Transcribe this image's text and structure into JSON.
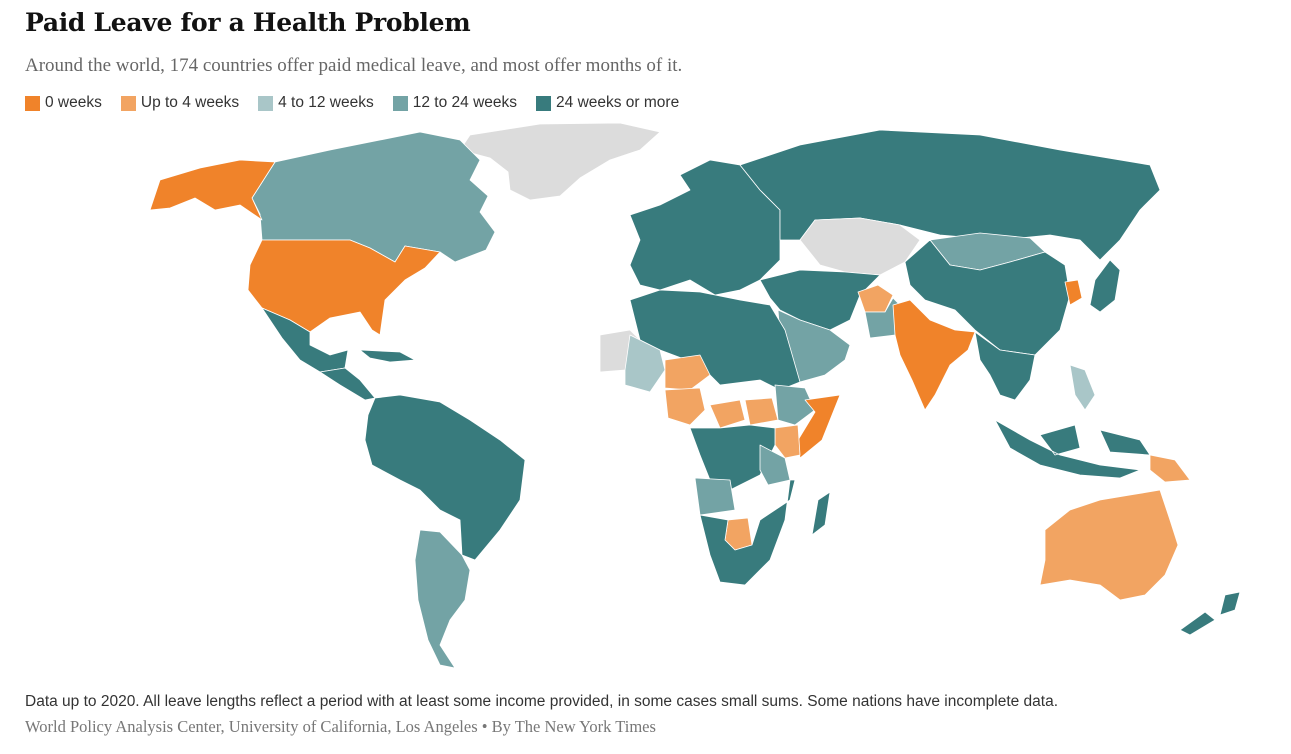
{
  "header": {
    "title": "Paid Leave for a Health Problem",
    "subtitle": "Around the world, 174 countries offer paid medical leave, and most offer months of it."
  },
  "legend": [
    {
      "label": "0 weeks",
      "color": "#f0832a"
    },
    {
      "label": "Up to 4 weeks",
      "color": "#f2a462"
    },
    {
      "label": "4 to 12 weeks",
      "color": "#a9c6c8"
    },
    {
      "label": "12 to 24 weeks",
      "color": "#73a3a5"
    },
    {
      "label": "24 weeks or more",
      "color": "#387b7d"
    }
  ],
  "no_data_color": "#dcdcdc",
  "regions": [
    {
      "name": "Alaska",
      "category": "0 weeks"
    },
    {
      "name": "Canada",
      "category": "12 to 24 weeks"
    },
    {
      "name": "United States",
      "category": "0 weeks"
    },
    {
      "name": "Greenland",
      "category": "no data"
    },
    {
      "name": "Mexico",
      "category": "24 weeks or more"
    },
    {
      "name": "Central America",
      "category": "24 weeks or more"
    },
    {
      "name": "South America",
      "category": "24 weeks or more"
    },
    {
      "name": "Argentina",
      "category": "12 to 24 weeks"
    },
    {
      "name": "Europe",
      "category": "24 weeks or more"
    },
    {
      "name": "Russia",
      "category": "24 weeks or more"
    },
    {
      "name": "Kazakhstan",
      "category": "no data"
    },
    {
      "name": "Mongolia",
      "category": "12 to 24 weeks"
    },
    {
      "name": "China",
      "category": "24 weeks or more"
    },
    {
      "name": "Middle East",
      "category": "24 weeks or more"
    },
    {
      "name": "Saudi Arabia",
      "category": "12 to 24 weeks"
    },
    {
      "name": "Afghanistan",
      "category": "Up to 4 weeks"
    },
    {
      "name": "Pakistan",
      "category": "12 to 24 weeks"
    },
    {
      "name": "India",
      "category": "0 weeks"
    },
    {
      "name": "South Korea",
      "category": "0 weeks"
    },
    {
      "name": "Japan",
      "category": "24 weeks or more"
    },
    {
      "name": "Southeast Asia",
      "category": "24 weeks or more"
    },
    {
      "name": "Philippines",
      "category": "4 to 12 weeks"
    },
    {
      "name": "Indonesia",
      "category": "24 weeks or more"
    },
    {
      "name": "Papua New Guinea",
      "category": "Up to 4 weeks"
    },
    {
      "name": "Australia",
      "category": "Up to 4 weeks"
    },
    {
      "name": "New Zealand",
      "category": "24 weeks or more"
    },
    {
      "name": "North Africa",
      "category": "24 weeks or more"
    },
    {
      "name": "Niger",
      "category": "Up to 4 weeks"
    },
    {
      "name": "Nigeria",
      "category": "Up to 4 weeks"
    },
    {
      "name": "Mali",
      "category": "4 to 12 weeks"
    },
    {
      "name": "Mauritania",
      "category": "no data"
    },
    {
      "name": "Central African Republic",
      "category": "Up to 4 weeks"
    },
    {
      "name": "South Sudan",
      "category": "Up to 4 weeks"
    },
    {
      "name": "Ethiopia",
      "category": "12 to 24 weeks"
    },
    {
      "name": "Somalia",
      "category": "0 weeks"
    },
    {
      "name": "Kenya",
      "category": "Up to 4 weeks"
    },
    {
      "name": "Tanzania",
      "category": "12 to 24 weeks"
    },
    {
      "name": "Central Africa",
      "category": "24 weeks or more"
    },
    {
      "name": "Angola",
      "category": "12 to 24 weeks"
    },
    {
      "name": "Botswana",
      "category": "Up to 4 weeks"
    },
    {
      "name": "South Africa",
      "category": "24 weeks or more"
    },
    {
      "name": "Madagascar",
      "category": "24 weeks or more"
    }
  ],
  "footer": {
    "note": "Data up to 2020. All leave lengths reflect a period with at least some income provided, in some cases small sums. Some nations have incomplete data.",
    "source": "World Policy Analysis Center, University of California, Los Angeles • By The New York Times"
  }
}
